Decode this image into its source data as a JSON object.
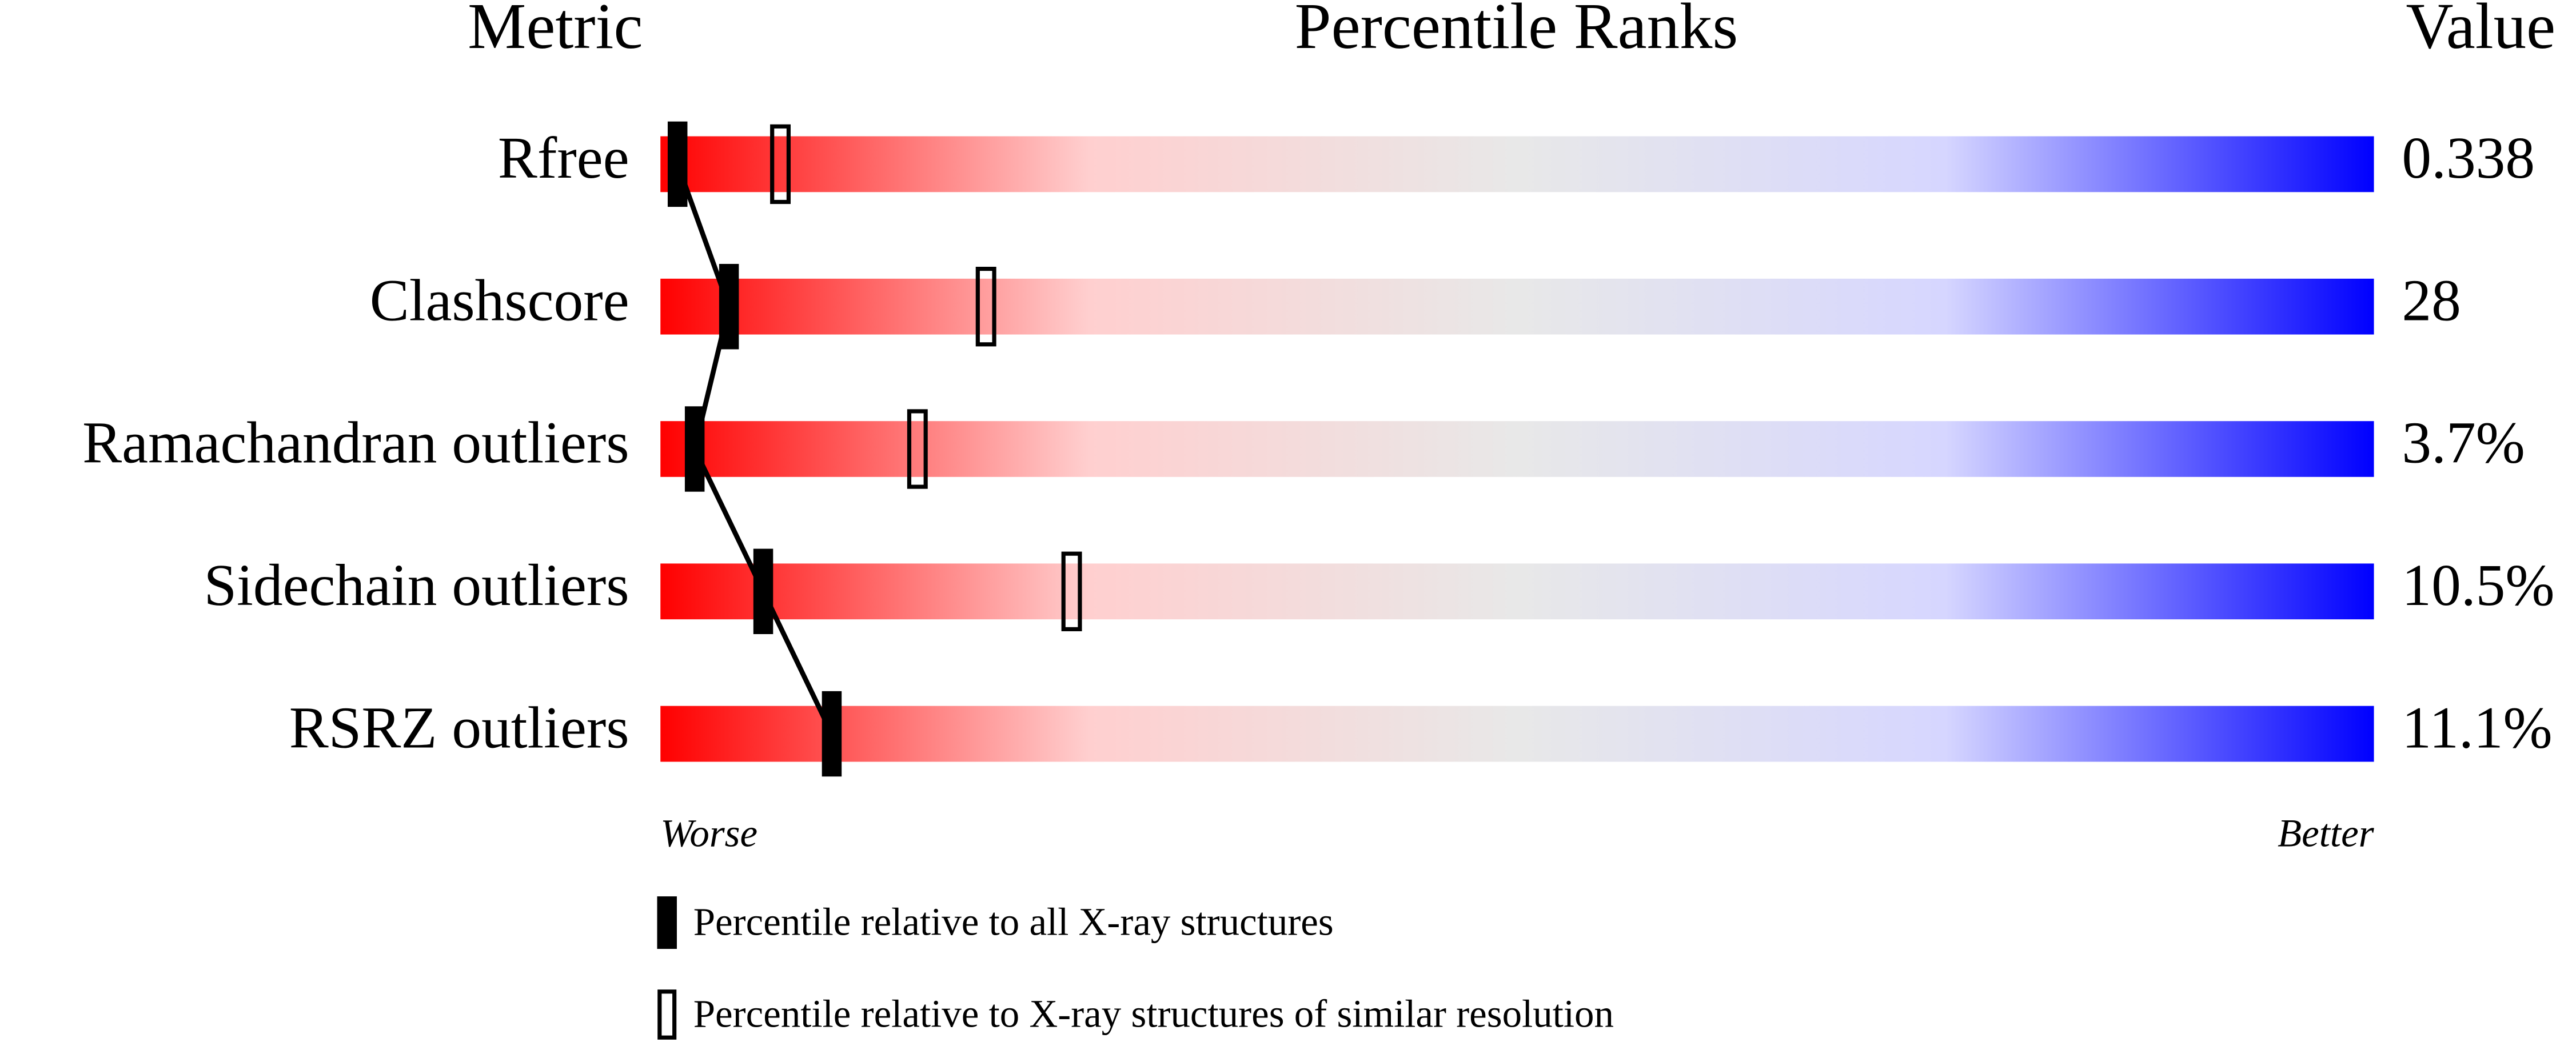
{
  "chart_data": {
    "type": "slider",
    "column_headers": [
      "Metric",
      "Percentile Ranks",
      "Value"
    ],
    "categories": [
      "Rfree",
      "Clashscore",
      "Ramachandran outliers",
      "Sidechain outliers",
      "RSRZ outliers"
    ],
    "metric_values": [
      "0.338",
      "28",
      "3.7%",
      "10.5%",
      "11.1%"
    ],
    "series": [
      {
        "name": "Percentile relative to all X-ray structures",
        "color": "#000000",
        "values": [
          1,
          4,
          2,
          6,
          10
        ]
      },
      {
        "name": "Percentile relative to X-ray structures of similar resolution",
        "color": "#000000",
        "values": [
          7,
          19,
          15,
          24,
          null
        ]
      }
    ],
    "xlim": [
      0,
      100
    ],
    "x_axis_labels": [
      "Worse",
      "Better"
    ],
    "gradient": [
      "#ff0000",
      "#ffcfcf",
      "#e8e8e8",
      "#d6d6ff",
      "#0000ff"
    ]
  }
}
